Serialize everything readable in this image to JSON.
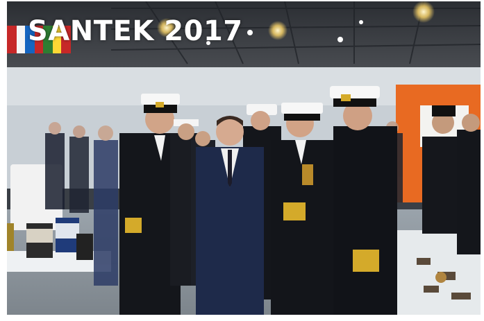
{
  "caption": {
    "title": "SANTEK 2017"
  }
}
